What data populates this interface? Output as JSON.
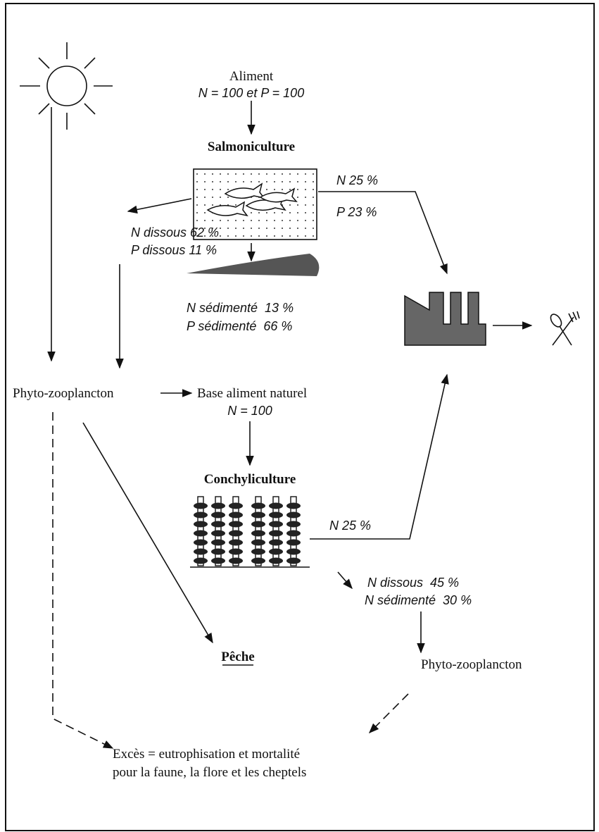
{
  "salmoniculture": {
    "input_title": "Aliment",
    "input_formula": "N = 100 et P = 100",
    "title": "Salmoniculture",
    "export_n": "N 25 %",
    "export_p": "P 23 %",
    "dissolved_n": "N dissous 62 %",
    "dissolved_p": "P dissous 11 %",
    "sediment_n": "N sédimenté  13 %",
    "sediment_p": "P sédimenté  66 %"
  },
  "plankton_left": "Phyto-zooplancton",
  "conchyliculture": {
    "input_title": "Base aliment naturel",
    "input_formula": "N = 100",
    "title": "Conchyliculture",
    "export_n": "N 25 %",
    "dissolved_n": "N dissous  45 %",
    "sediment_n": "N sédimenté  30 %"
  },
  "fishing": "Pêche",
  "plankton_right": "Phyto-zooplancton",
  "excess": [
    "Excès = eutrophisation et mortalité",
    "pour la faune, la flore et les cheptels"
  ]
}
